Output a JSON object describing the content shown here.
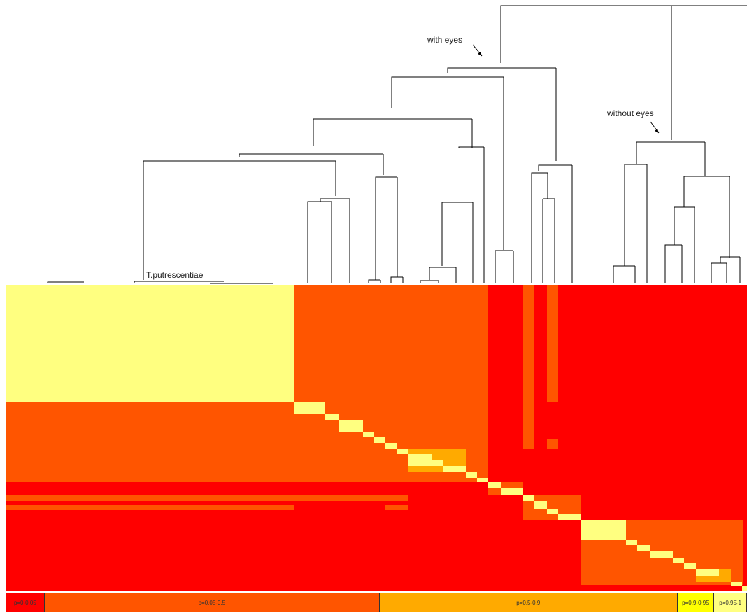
{
  "annotations": {
    "with_eyes": "with eyes",
    "without_eyes": "without eyes",
    "taxon_label": "T.putrescentiae"
  },
  "colors": {
    "p0": "#ff0000",
    "p005": "#ff5500",
    "p05": "#ffaa00",
    "p09": "#ffff00",
    "p095": "#ffff80",
    "line": "#000000"
  },
  "legend": [
    {
      "label": "p=0-\n0.05",
      "color": "#ff0000",
      "weight": 54
    },
    {
      "label": "p=0.05-0.5",
      "color": "#ff5500",
      "weight": 481
    },
    {
      "label": "p=0.5-0.9",
      "color": "#ffaa00",
      "weight": 427
    },
    {
      "label": "p=0.9-\n0.95",
      "color": "#ffff00",
      "weight": 52
    },
    {
      "label": "p=\n0.95-1",
      "color": "#ffff80",
      "weight": 46
    }
  ]
}
